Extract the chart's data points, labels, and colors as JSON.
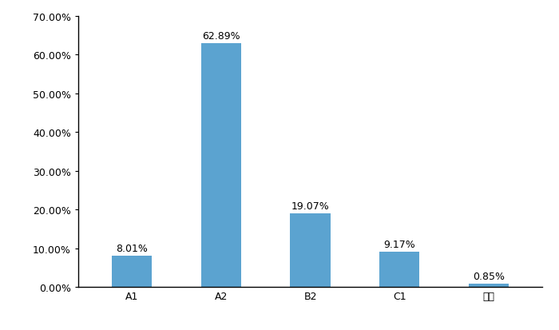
{
  "categories": [
    "A1",
    "A2",
    "B2",
    "C1",
    "其他"
  ],
  "values": [
    0.0801,
    0.6289,
    0.1907,
    0.0917,
    0.0085
  ],
  "labels": [
    "8.01%",
    "62.89%",
    "19.07%",
    "9.17%",
    "0.85%"
  ],
  "bar_color": "#5ba3d0",
  "ylim": [
    0,
    0.7
  ],
  "yticks": [
    0.0,
    0.1,
    0.2,
    0.3,
    0.4,
    0.5,
    0.6,
    0.7
  ],
  "ytick_labels": [
    "0.00%",
    "10.00%",
    "20.00%",
    "30.00%",
    "40.00%",
    "50.00%",
    "60.00%",
    "70.00%"
  ],
  "background_color": "#ffffff",
  "label_fontsize": 9,
  "tick_fontsize": 9,
  "bar_width": 0.45
}
